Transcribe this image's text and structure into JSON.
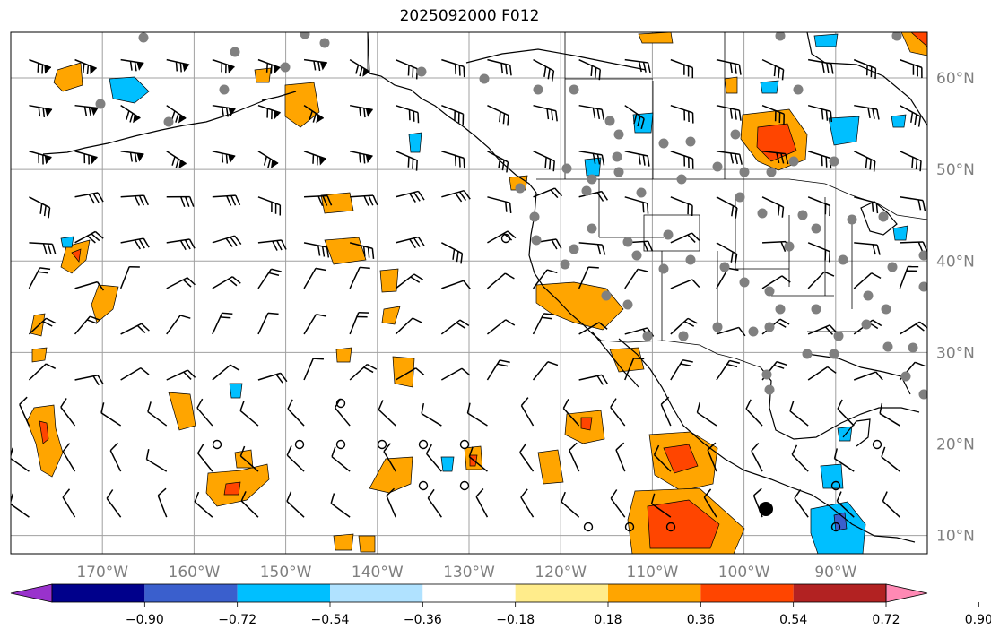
{
  "title": "2025092000 F012",
  "map": {
    "lon_range": [
      -180,
      -80
    ],
    "lat_range": [
      8,
      65
    ],
    "lat_labels": [
      "60°N",
      "50°N",
      "40°N",
      "30°N",
      "20°N",
      "10°N"
    ],
    "lon_labels": [
      "170°W",
      "160°W",
      "150°W",
      "140°W",
      "130°W",
      "120°W",
      "110°W",
      "100°W",
      "90°W"
    ],
    "grid": true,
    "barb_color": "#000000",
    "dot_color": "#808080"
  },
  "colorbar": {
    "extend": "both",
    "colors": [
      "#9932cc",
      "#00008b",
      "#3a5fcd",
      "#00bfff",
      "#b0e2ff",
      "#ffffff",
      "#ffec8b",
      "#ffa500",
      "#ff4500",
      "#b22222",
      "#ff89b4"
    ],
    "tick_labels": [
      "−0.90",
      "−0.72",
      "−0.54",
      "−0.36",
      "−0.18",
      "0.18",
      "0.36",
      "0.54",
      "0.72",
      "0.90"
    ]
  }
}
